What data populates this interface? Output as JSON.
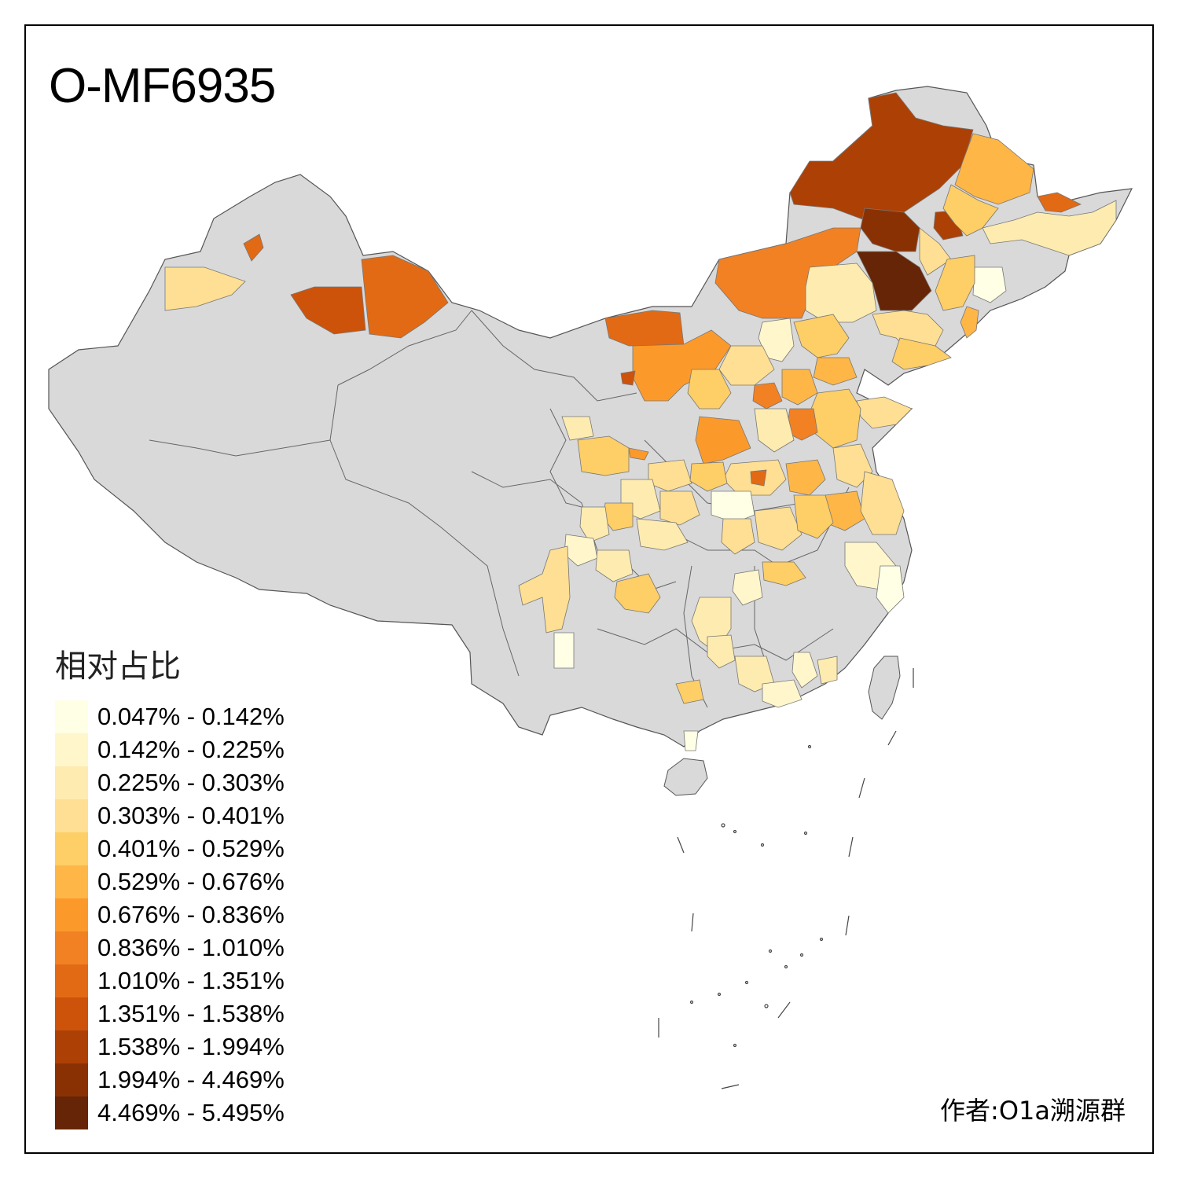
{
  "title": "O-MF6935",
  "legend": {
    "title": "相对占比",
    "items": [
      {
        "label": "0.047% - 0.142%",
        "color": "#ffffe5"
      },
      {
        "label": "0.142% - 0.225%",
        "color": "#fff6cc"
      },
      {
        "label": "0.225% - 0.303%",
        "color": "#feebb0"
      },
      {
        "label": "0.303% - 0.401%",
        "color": "#fedf93"
      },
      {
        "label": "0.401% - 0.529%",
        "color": "#fece67"
      },
      {
        "label": "0.529% - 0.676%",
        "color": "#feb647"
      },
      {
        "label": "0.676% - 0.836%",
        "color": "#fb9a2b"
      },
      {
        "label": "0.836% - 1.010%",
        "color": "#f28123"
      },
      {
        "label": "1.010% - 1.351%",
        "color": "#e26a14"
      },
      {
        "label": "1.351% - 1.538%",
        "color": "#cd530a"
      },
      {
        "label": "1.538% - 1.994%",
        "color": "#ad4005"
      },
      {
        "label": "1.994% - 4.469%",
        "color": "#8a3104"
      },
      {
        "label": "4.469% - 5.495%",
        "color": "#662506"
      }
    ]
  },
  "author": "作者:O1a溯源群",
  "colors": {
    "no_data": "#d9d9d9",
    "border": "#555555",
    "frame": "#000000"
  }
}
